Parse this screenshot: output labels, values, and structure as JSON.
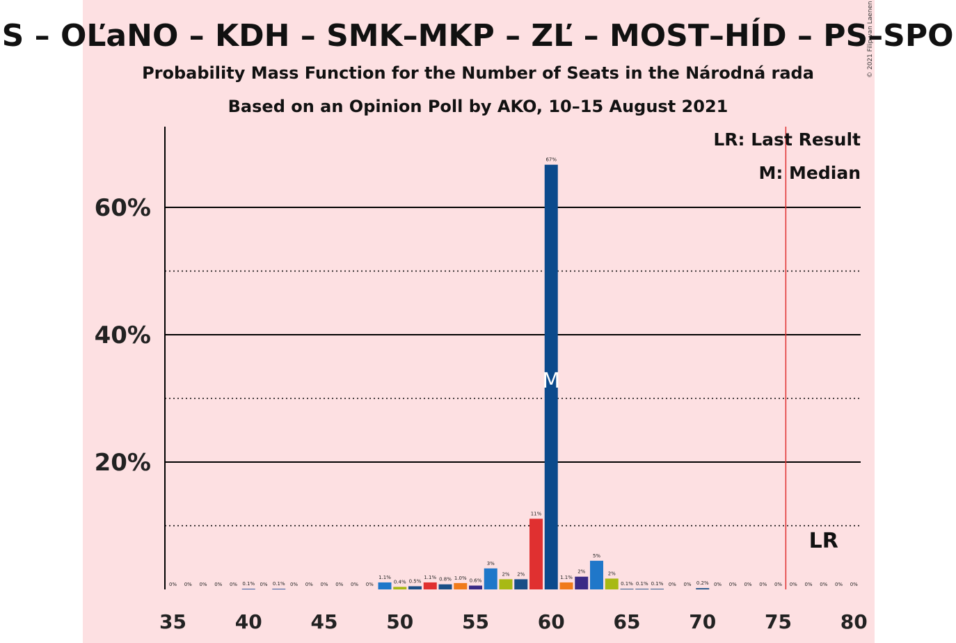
{
  "chart_data": {
    "type": "bar",
    "title": "SaS – OĽaNO – KDH – SMK–MKP – ZĽ – MOST–HÍD – PS–SPOLU",
    "subtitle_line1": "Probability Mass Function for the Number of Seats in the Národná rada",
    "subtitle_line2": "Based on an Opinion Poll by AKO, 10–15 August 2021",
    "copyright": "© 2021 Filip van Laenen",
    "legend": {
      "last_result": "LR: Last Result",
      "median": "M: Median",
      "placement": "top-right"
    },
    "xlim": [
      35,
      80
    ],
    "ylim": [
      0,
      72
    ],
    "x_ticks": [
      35,
      40,
      45,
      50,
      55,
      60,
      65,
      70,
      75,
      80
    ],
    "x_tick_labels": [
      "35",
      "40",
      "45",
      "50",
      "55",
      "60",
      "65",
      "70",
      "75",
      "80"
    ],
    "y_ticks_major": [
      20,
      40,
      60
    ],
    "y_tick_labels": [
      "20%",
      "40%",
      "60%"
    ],
    "y_ticks_minor": [
      10,
      30,
      50
    ],
    "majority_line": 76,
    "last_result_seats": 78,
    "last_result_label": "LR",
    "median_seats": 60,
    "median_marker": "M",
    "bars": [
      {
        "seats": 35,
        "value": 0,
        "label": "0%",
        "color": "#1f4e9a"
      },
      {
        "seats": 36,
        "value": 0,
        "label": "0%",
        "color": "#1f4e9a"
      },
      {
        "seats": 37,
        "value": 0,
        "label": "0%",
        "color": "#1f4e9a"
      },
      {
        "seats": 38,
        "value": 0,
        "label": "0%",
        "color": "#1f4e9a"
      },
      {
        "seats": 39,
        "value": 0,
        "label": "0%",
        "color": "#1f4e9a"
      },
      {
        "seats": 40,
        "value": 0.1,
        "label": "0.1%",
        "color": "#1f4e9a"
      },
      {
        "seats": 41,
        "value": 0,
        "label": "0%",
        "color": "#1f4e9a"
      },
      {
        "seats": 42,
        "value": 0.1,
        "label": "0.1%",
        "color": "#1f4e9a"
      },
      {
        "seats": 43,
        "value": 0,
        "label": "0%",
        "color": "#1f4e9a"
      },
      {
        "seats": 44,
        "value": 0,
        "label": "0%",
        "color": "#1f4e9a"
      },
      {
        "seats": 45,
        "value": 0,
        "label": "0%",
        "color": "#1f4e9a"
      },
      {
        "seats": 46,
        "value": 0,
        "label": "0%",
        "color": "#1f4e9a"
      },
      {
        "seats": 47,
        "value": 0,
        "label": "0%",
        "color": "#1f4e9a"
      },
      {
        "seats": 48,
        "value": 0,
        "label": "0%",
        "color": "#1f4e9a"
      },
      {
        "seats": 49,
        "value": 1.1,
        "label": "1.1%",
        "color": "#1f77c9"
      },
      {
        "seats": 50,
        "value": 0.4,
        "label": "0.4%",
        "color": "#a8b914"
      },
      {
        "seats": 51,
        "value": 0.5,
        "label": "0.5%",
        "color": "#1a4f87"
      },
      {
        "seats": 52,
        "value": 1.1,
        "label": "1.1%",
        "color": "#e03030"
      },
      {
        "seats": 53,
        "value": 0.8,
        "label": "0.8%",
        "color": "#1a4f87"
      },
      {
        "seats": 54,
        "value": 1.0,
        "label": "1.0%",
        "color": "#f07a1a"
      },
      {
        "seats": 55,
        "value": 0.6,
        "label": "0.6%",
        "color": "#3a2a86"
      },
      {
        "seats": 56,
        "value": 3.3,
        "label": "3%",
        "color": "#1f77c9"
      },
      {
        "seats": 57,
        "value": 1.6,
        "label": "2%",
        "color": "#a8b914"
      },
      {
        "seats": 58,
        "value": 1.6,
        "label": "2%",
        "color": "#1a4f87"
      },
      {
        "seats": 59,
        "value": 11.1,
        "label": "11%",
        "color": "#e03030"
      },
      {
        "seats": 60,
        "value": 66.7,
        "label": "67%",
        "color": "#0c4a8c"
      },
      {
        "seats": 61,
        "value": 1.1,
        "label": "1.1%",
        "color": "#f07a1a"
      },
      {
        "seats": 62,
        "value": 2.0,
        "label": "2%",
        "color": "#3a2a86"
      },
      {
        "seats": 63,
        "value": 4.5,
        "label": "5%",
        "color": "#1f77c9"
      },
      {
        "seats": 64,
        "value": 1.7,
        "label": "2%",
        "color": "#a8b914"
      },
      {
        "seats": 65,
        "value": 0.1,
        "label": "0.1%",
        "color": "#1a4f87"
      },
      {
        "seats": 66,
        "value": 0.1,
        "label": "0.1%",
        "color": "#1a4f87"
      },
      {
        "seats": 67,
        "value": 0.1,
        "label": "0.1%",
        "color": "#1a4f87"
      },
      {
        "seats": 68,
        "value": 0,
        "label": "0%",
        "color": "#1a4f87"
      },
      {
        "seats": 69,
        "value": 0,
        "label": "0%",
        "color": "#1a4f87"
      },
      {
        "seats": 70,
        "value": 0.2,
        "label": "0.2%",
        "color": "#1a4f87"
      },
      {
        "seats": 71,
        "value": 0,
        "label": "0%",
        "color": "#1a4f87"
      },
      {
        "seats": 72,
        "value": 0,
        "label": "0%",
        "color": "#1a4f87"
      },
      {
        "seats": 73,
        "value": 0,
        "label": "0%",
        "color": "#1a4f87"
      },
      {
        "seats": 74,
        "value": 0,
        "label": "0%",
        "color": "#1a4f87"
      },
      {
        "seats": 75,
        "value": 0,
        "label": "0%",
        "color": "#1a4f87"
      },
      {
        "seats": 76,
        "value": 0,
        "label": "0%",
        "color": "#1a4f87"
      },
      {
        "seats": 77,
        "value": 0,
        "label": "0%",
        "color": "#1a4f87"
      },
      {
        "seats": 78,
        "value": 0,
        "label": "0%",
        "color": "#1a4f87"
      },
      {
        "seats": 79,
        "value": 0,
        "label": "0%",
        "color": "#1a4f87"
      },
      {
        "seats": 80,
        "value": 0,
        "label": "0%",
        "color": "#1a4f87"
      }
    ],
    "colors": {
      "background_band": "#fde0e2",
      "majority_line": "#e03030",
      "gridline": "#000000",
      "median_marker": "#ffffff"
    }
  }
}
